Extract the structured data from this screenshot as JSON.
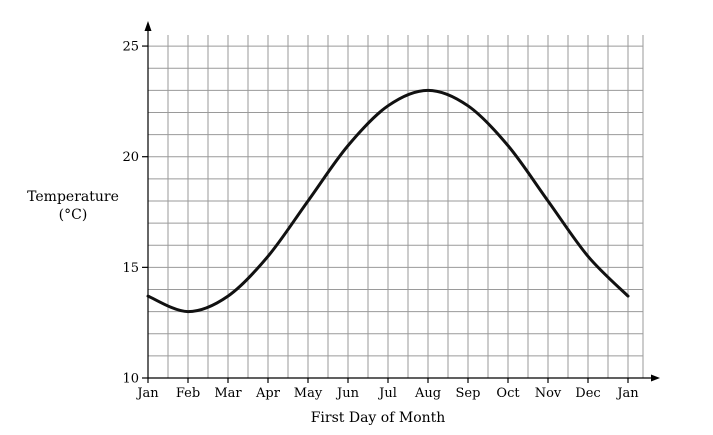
{
  "chart_data": {
    "type": "line",
    "xlabel": "First Day of Month",
    "ylabel_lines": [
      "Temperature",
      "(°C)"
    ],
    "x_tick_labels": [
      "Jan",
      "Feb",
      "Mar",
      "Apr",
      "May",
      "Jun",
      "Jul",
      "Aug",
      "Sep",
      "Oct",
      "Nov",
      "Dec",
      "Jan"
    ],
    "y_ticks": [
      10,
      15,
      20,
      25
    ],
    "ylim": [
      10,
      25.5
    ],
    "y_minor_step": 1,
    "x_minor_per_month": 2,
    "grid": true,
    "line_color": "#111111",
    "grid_color": "#9a9a9a",
    "series": [
      {
        "x": [
          "Jan",
          "Feb",
          "Mar",
          "Apr",
          "May",
          "Jun",
          "Jul",
          "Aug",
          "Sep",
          "Oct",
          "Nov",
          "Dec",
          "Jan"
        ],
        "y": [
          13.7,
          13.0,
          13.7,
          15.5,
          18.0,
          20.5,
          22.3,
          23.0,
          22.3,
          20.5,
          18.0,
          15.5,
          13.7
        ]
      }
    ]
  }
}
